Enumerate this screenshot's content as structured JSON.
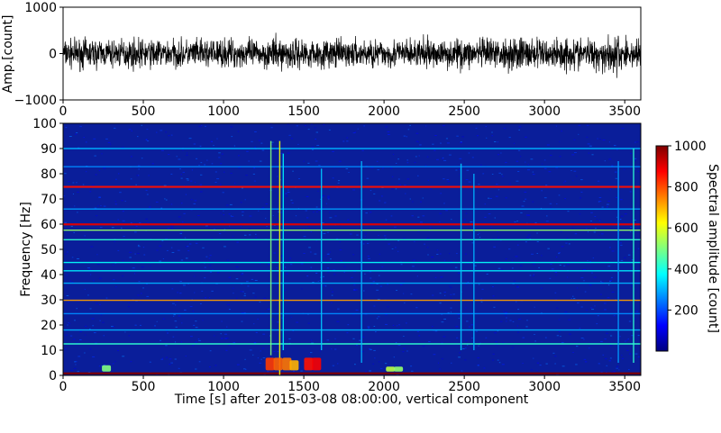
{
  "chart_data": [
    {
      "type": "line",
      "title": "",
      "xlabel": "",
      "ylabel": "Amp.[count]",
      "xlim": [
        0,
        3600
      ],
      "ylim": [
        -1000,
        1000
      ],
      "x_ticks": [
        0,
        500,
        1000,
        1500,
        2000,
        2500,
        3000,
        3500
      ],
      "y_ticks": [
        -1000,
        0,
        1000
      ],
      "x_tick_labels": [
        "0",
        "500",
        "1000",
        "1500",
        "2000",
        "2500",
        "3000",
        "3500"
      ],
      "y_tick_labels": [
        "−1000",
        "0",
        "1000"
      ],
      "series": [
        {
          "color": "#000000",
          "description_free": true,
          "envelope_x": [
            0,
            150,
            300,
            450,
            600,
            750,
            900,
            1050,
            1200,
            1350,
            1500,
            1650,
            1800,
            1950,
            2100,
            2250,
            2400,
            2550,
            2700,
            2850,
            3000,
            3150,
            3300,
            3450,
            3600
          ],
          "envelope_max": [
            430,
            460,
            420,
            470,
            440,
            430,
            450,
            460,
            440,
            500,
            470,
            440,
            430,
            450,
            440,
            460,
            430,
            480,
            440,
            560,
            450,
            520,
            470,
            560,
            430
          ],
          "envelope_min": [
            -440,
            -470,
            -430,
            -460,
            -450,
            -430,
            -460,
            -440,
            -450,
            -510,
            -460,
            -450,
            -440,
            -460,
            -450,
            -470,
            -440,
            -490,
            -450,
            -560,
            -460,
            -540,
            -480,
            -720,
            -440
          ]
        }
      ]
    },
    {
      "type": "heatmap",
      "title": "",
      "xlabel": "Time [s] after 2015-03-08 08:00:00, vertical component",
      "ylabel": "Frequency [Hz]",
      "xlim": [
        0,
        3600
      ],
      "ylim": [
        0,
        100
      ],
      "x_ticks": [
        0,
        500,
        1000,
        1500,
        2000,
        2500,
        3000,
        3500
      ],
      "y_ticks": [
        0,
        10,
        20,
        30,
        40,
        50,
        60,
        70,
        80,
        90,
        100
      ],
      "x_tick_labels": [
        "0",
        "500",
        "1000",
        "1500",
        "2000",
        "2500",
        "3000",
        "3500"
      ],
      "y_tick_labels": [
        "0",
        "10",
        "20",
        "30",
        "40",
        "50",
        "60",
        "70",
        "80",
        "90",
        "100"
      ],
      "colormap": "jet",
      "background_color": "#0a1e9a",
      "colorbar": {
        "label": "Spectral amplitude [count]",
        "min": 0,
        "max": 1000,
        "ticks": [
          200,
          400,
          600,
          800,
          1000
        ],
        "tick_labels": [
          "200",
          "400",
          "600",
          "800",
          "1000"
        ],
        "colors": [
          "#00007f",
          "#0000ff",
          "#007fff",
          "#00ffff",
          "#7fff7f",
          "#ffff00",
          "#ff7f00",
          "#ff0000",
          "#7f0000"
        ]
      },
      "horizontal_lines": [
        {
          "freq": 0.8,
          "amplitude": 1000
        },
        {
          "freq": 12.5,
          "amplitude": 420
        },
        {
          "freq": 18,
          "amplitude": 300
        },
        {
          "freq": 24.5,
          "amplitude": 260
        },
        {
          "freq": 29.8,
          "amplitude": 720
        },
        {
          "freq": 36.6,
          "amplitude": 300
        },
        {
          "freq": 41.5,
          "amplitude": 360
        },
        {
          "freq": 44.8,
          "amplitude": 380
        },
        {
          "freq": 53.8,
          "amplitude": 420
        },
        {
          "freq": 57.6,
          "amplitude": 520
        },
        {
          "freq": 59.9,
          "amplitude": 900
        },
        {
          "freq": 66,
          "amplitude": 280
        },
        {
          "freq": 74.8,
          "amplitude": 860
        },
        {
          "freq": 82.8,
          "amplitude": 260
        },
        {
          "freq": 90,
          "amplitude": 300
        }
      ],
      "vertical_lines": [
        {
          "time": 1295,
          "f0": 8,
          "f1": 93,
          "amplitude": 500
        },
        {
          "time": 1350,
          "f0": 0,
          "f1": 93,
          "amplitude": 620
        },
        {
          "time": 1372,
          "f0": 10,
          "f1": 88,
          "amplitude": 360
        },
        {
          "time": 1610,
          "f0": 10,
          "f1": 82,
          "amplitude": 320
        },
        {
          "time": 1860,
          "f0": 5,
          "f1": 85,
          "amplitude": 300
        },
        {
          "time": 2480,
          "f0": 10,
          "f1": 84,
          "amplitude": 320
        },
        {
          "time": 2560,
          "f0": 10,
          "f1": 80,
          "amplitude": 300
        },
        {
          "time": 3460,
          "f0": 5,
          "f1": 85,
          "amplitude": 280
        },
        {
          "time": 3555,
          "f0": 5,
          "f1": 90,
          "amplitude": 420
        }
      ],
      "low_frequency_bursts": [
        {
          "time": 1290,
          "f0": 2,
          "f1": 7,
          "amplitude": 820
        },
        {
          "time": 1340,
          "f0": 2,
          "f1": 7,
          "amplitude": 780
        },
        {
          "time": 1395,
          "f0": 2,
          "f1": 7,
          "amplitude": 760
        },
        {
          "time": 1440,
          "f0": 2,
          "f1": 6,
          "amplitude": 700
        },
        {
          "time": 1530,
          "f0": 2,
          "f1": 7,
          "amplitude": 860
        },
        {
          "time": 1580,
          "f0": 2,
          "f1": 7,
          "amplitude": 880
        },
        {
          "time": 2040,
          "f0": 1.5,
          "f1": 3.5,
          "amplitude": 560
        },
        {
          "time": 2090,
          "f0": 1.5,
          "f1": 3.5,
          "amplitude": 520
        },
        {
          "time": 270,
          "f0": 1.5,
          "f1": 4,
          "amplitude": 500
        }
      ]
    }
  ]
}
